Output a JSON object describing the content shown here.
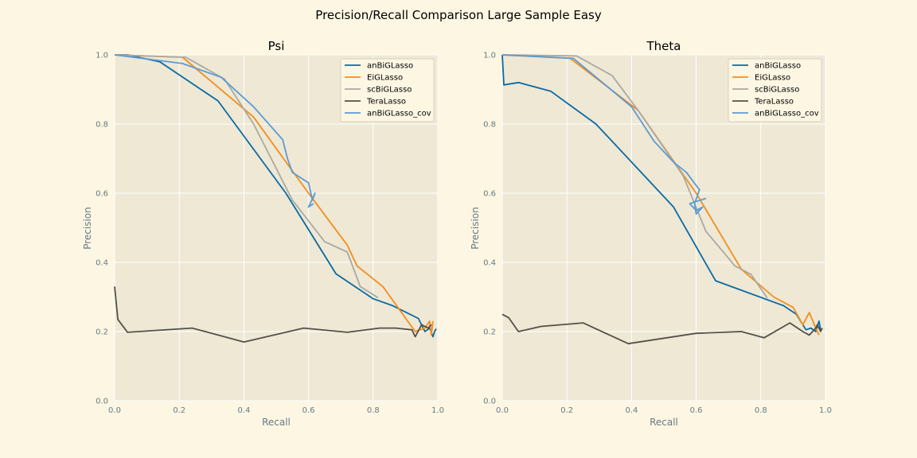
{
  "figure": {
    "suptitle": "Precision/Recall Comparison Large Sample Easy",
    "background": "#fdf6e3",
    "axes_background": "#eee8d5",
    "grid_color": "#ffffff"
  },
  "chart_data": [
    {
      "type": "line",
      "title": "Psi",
      "xlabel": "Recall",
      "ylabel": "Precision",
      "xlim": [
        0,
        1
      ],
      "ylim": [
        0,
        1
      ],
      "xticks": [
        "0.0",
        "0.2",
        "0.4",
        "0.6",
        "0.8",
        "1.0"
      ],
      "yticks": [
        "0.0",
        "0.2",
        "0.4",
        "0.6",
        "0.8",
        "1.0"
      ],
      "grid": true,
      "legend_position": "top-right",
      "series": [
        {
          "name": "anBiGLasso",
          "color": "#0b6aa2",
          "points": [
            [
              0.0,
              1.0
            ],
            [
              0.04,
              1.0
            ],
            [
              0.14,
              0.98
            ],
            [
              0.32,
              0.867
            ],
            [
              0.53,
              0.6
            ],
            [
              0.685,
              0.367
            ],
            [
              0.8,
              0.295
            ],
            [
              0.86,
              0.275
            ],
            [
              0.94,
              0.238
            ],
            [
              0.96,
              0.2
            ],
            [
              0.975,
              0.21
            ],
            [
              0.985,
              0.185
            ],
            [
              0.99,
              0.2
            ],
            [
              0.995,
              0.208
            ]
          ]
        },
        {
          "name": "EiGLasso",
          "color": "#f28e1c",
          "points": [
            [
              0.0,
              1.0
            ],
            [
              0.21,
              0.993
            ],
            [
              0.43,
              0.82
            ],
            [
              0.6,
              0.6
            ],
            [
              0.72,
              0.45
            ],
            [
              0.75,
              0.39
            ],
            [
              0.83,
              0.33
            ],
            [
              0.93,
              0.2
            ],
            [
              0.96,
              0.21
            ],
            [
              0.975,
              0.23
            ],
            [
              0.98,
              0.19
            ],
            [
              0.985,
              0.23
            ]
          ]
        },
        {
          "name": "scBiGLasso",
          "color": "#aaa9a0",
          "points": [
            [
              0.0,
              1.0
            ],
            [
              0.22,
              0.993
            ],
            [
              0.34,
              0.93
            ],
            [
              0.43,
              0.8
            ],
            [
              0.55,
              0.58
            ],
            [
              0.65,
              0.46
            ],
            [
              0.72,
              0.43
            ],
            [
              0.76,
              0.33
            ],
            [
              0.815,
              0.298
            ]
          ]
        },
        {
          "name": "TeraLasso",
          "color": "#55504a",
          "points": [
            [
              0.0,
              0.33
            ],
            [
              0.01,
              0.235
            ],
            [
              0.04,
              0.198
            ],
            [
              0.24,
              0.21
            ],
            [
              0.4,
              0.17
            ],
            [
              0.585,
              0.21
            ],
            [
              0.72,
              0.198
            ],
            [
              0.82,
              0.21
            ],
            [
              0.87,
              0.21
            ],
            [
              0.92,
              0.205
            ],
            [
              0.93,
              0.185
            ],
            [
              0.95,
              0.22
            ],
            [
              0.97,
              0.21
            ],
            [
              0.98,
              0.22
            ]
          ]
        },
        {
          "name": "anBiGLasso_cov",
          "color": "#5b9bd5",
          "points": [
            [
              0.0,
              1.0
            ],
            [
              0.21,
              0.975
            ],
            [
              0.33,
              0.935
            ],
            [
              0.43,
              0.85
            ],
            [
              0.52,
              0.755
            ],
            [
              0.535,
              0.7
            ],
            [
              0.55,
              0.66
            ],
            [
              0.6,
              0.63
            ],
            [
              0.612,
              0.58
            ],
            [
              0.62,
              0.6
            ],
            [
              0.6,
              0.56
            ],
            [
              0.615,
              0.57
            ]
          ]
        }
      ]
    },
    {
      "type": "line",
      "title": "Theta",
      "xlabel": "Recall",
      "ylabel": "Precision",
      "xlim": [
        0,
        1
      ],
      "ylim": [
        0,
        1
      ],
      "xticks": [
        "0.0",
        "0.2",
        "0.4",
        "0.6",
        "0.8",
        "1.0"
      ],
      "yticks": [
        "0.0",
        "0.2",
        "0.4",
        "0.6",
        "0.8",
        "1.0"
      ],
      "grid": true,
      "legend_position": "top-right",
      "series": [
        {
          "name": "anBiGLasso",
          "color": "#0b6aa2",
          "points": [
            [
              0.0,
              1.0
            ],
            [
              0.005,
              0.913
            ],
            [
              0.05,
              0.92
            ],
            [
              0.15,
              0.895
            ],
            [
              0.29,
              0.8
            ],
            [
              0.53,
              0.56
            ],
            [
              0.66,
              0.347
            ],
            [
              0.87,
              0.275
            ],
            [
              0.91,
              0.25
            ],
            [
              0.94,
              0.205
            ],
            [
              0.955,
              0.21
            ],
            [
              0.97,
              0.2
            ],
            [
              0.98,
              0.23
            ],
            [
              0.985,
              0.205
            ]
          ]
        },
        {
          "name": "EiGLasso",
          "color": "#f28e1c",
          "points": [
            [
              0.0,
              1.0
            ],
            [
              0.21,
              0.99
            ],
            [
              0.42,
              0.84
            ],
            [
              0.6,
              0.6
            ],
            [
              0.74,
              0.38
            ],
            [
              0.84,
              0.3
            ],
            [
              0.9,
              0.27
            ],
            [
              0.93,
              0.22
            ],
            [
              0.95,
              0.255
            ],
            [
              0.97,
              0.21
            ],
            [
              0.98,
              0.19
            ]
          ]
        },
        {
          "name": "scBiGLasso",
          "color": "#aaa9a0",
          "points": [
            [
              0.0,
              1.0
            ],
            [
              0.23,
              0.997
            ],
            [
              0.34,
              0.94
            ],
            [
              0.42,
              0.84
            ],
            [
              0.56,
              0.65
            ],
            [
              0.63,
              0.49
            ],
            [
              0.72,
              0.39
            ],
            [
              0.77,
              0.365
            ],
            [
              0.82,
              0.297
            ]
          ]
        },
        {
          "name": "TeraLasso",
          "color": "#55504a",
          "points": [
            [
              0.0,
              0.25
            ],
            [
              0.02,
              0.24
            ],
            [
              0.05,
              0.2
            ],
            [
              0.12,
              0.215
            ],
            [
              0.25,
              0.225
            ],
            [
              0.39,
              0.165
            ],
            [
              0.6,
              0.195
            ],
            [
              0.74,
              0.2
            ],
            [
              0.81,
              0.182
            ],
            [
              0.89,
              0.225
            ],
            [
              0.93,
              0.2
            ],
            [
              0.95,
              0.19
            ],
            [
              0.97,
              0.21
            ],
            [
              0.975,
              0.22
            ],
            [
              0.985,
              0.2
            ],
            [
              0.99,
              0.21
            ]
          ]
        },
        {
          "name": "anBiGLasso_cov",
          "color": "#5b9bd5",
          "points": [
            [
              0.0,
              1.0
            ],
            [
              0.22,
              0.99
            ],
            [
              0.31,
              0.92
            ],
            [
              0.4,
              0.85
            ],
            [
              0.47,
              0.75
            ],
            [
              0.53,
              0.69
            ],
            [
              0.57,
              0.66
            ],
            [
              0.61,
              0.61
            ],
            [
              0.595,
              0.57
            ],
            [
              0.6,
              0.54
            ],
            [
              0.62,
              0.56
            ],
            [
              0.6,
              0.55
            ],
            [
              0.58,
              0.57
            ],
            [
              0.63,
              0.585
            ]
          ]
        }
      ]
    }
  ]
}
